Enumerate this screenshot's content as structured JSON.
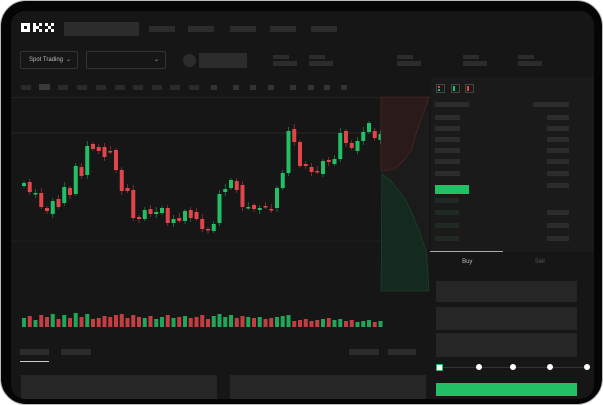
{
  "header": {
    "logo": "OKX"
  },
  "toolbar": {
    "market_select": "Spot Trading",
    "chevron": "⌄"
  },
  "trade": {
    "buy_tab": "Buy",
    "sell_tab": "Sell",
    "slider_percent": 0
  },
  "colors": {
    "up": "#22c065",
    "down": "#e0454a",
    "bg": "#161616",
    "skeleton": "#2c2c2c"
  },
  "icons": [
    "chevron-down-icon",
    "line-icon",
    "ruler-icon",
    "camera-icon",
    "settings-icon",
    "fullscreen-icon",
    "orderbook-both-icon",
    "orderbook-buy-icon",
    "orderbook-sell-icon"
  ],
  "chart_data": {
    "type": "candlestick",
    "title": "",
    "candles": [
      [
        115,
        118
      ],
      [
        119,
        109
      ],
      [
        107,
        108
      ],
      [
        108,
        94
      ],
      [
        93,
        90
      ],
      [
        87,
        100
      ],
      [
        102,
        94
      ],
      [
        98,
        114
      ],
      [
        113,
        106
      ],
      [
        107,
        135
      ],
      [
        134,
        125
      ],
      [
        126,
        155
      ],
      [
        157,
        152
      ],
      [
        154,
        150
      ],
      [
        154,
        144
      ],
      [
        150,
        149
      ],
      [
        151,
        131
      ],
      [
        131,
        110
      ],
      [
        113,
        110
      ],
      [
        111,
        83
      ],
      [
        84,
        82
      ],
      [
        82,
        91
      ],
      [
        92,
        87
      ],
      [
        87,
        89
      ],
      [
        88,
        93
      ],
      [
        93,
        78
      ],
      [
        78,
        82
      ],
      [
        83,
        80
      ],
      [
        80,
        90
      ],
      [
        91,
        83
      ],
      [
        89,
        82
      ],
      [
        82,
        72
      ],
      [
        72,
        71
      ],
      [
        70,
        77
      ],
      [
        78,
        107
      ],
      [
        109,
        112
      ],
      [
        113,
        121
      ],
      [
        120,
        111
      ],
      [
        116,
        94
      ],
      [
        93,
        94
      ],
      [
        96,
        92
      ],
      [
        91,
        93
      ],
      [
        95,
        94
      ],
      [
        92,
        91
      ],
      [
        93,
        113
      ],
      [
        113,
        128
      ],
      [
        128,
        170
      ],
      [
        172,
        159
      ],
      [
        159,
        135
      ],
      [
        137,
        135
      ],
      [
        134,
        129
      ],
      [
        130,
        129
      ],
      [
        127,
        140
      ],
      [
        141,
        139
      ],
      [
        137,
        142
      ],
      [
        142,
        168
      ],
      [
        170,
        158
      ],
      [
        158,
        153
      ],
      [
        150,
        160
      ],
      [
        160,
        169
      ],
      [
        169,
        178
      ],
      [
        170,
        163
      ],
      [
        161,
        167
      ]
    ],
    "volumes": [
      9,
      11,
      7,
      12,
      10,
      13,
      8,
      12,
      9,
      14,
      10,
      13,
      8,
      9,
      11,
      10,
      12,
      13,
      9,
      12,
      10,
      9,
      11,
      8,
      10,
      12,
      9,
      10,
      11,
      9,
      10,
      12,
      8,
      11,
      13,
      10,
      12,
      9,
      11,
      10,
      9,
      10,
      8,
      9,
      10,
      11,
      12,
      6,
      7,
      8,
      6,
      7,
      8,
      9,
      7,
      8,
      6,
      7,
      5,
      6,
      7,
      5,
      6
    ],
    "depth": {
      "asks": "top-left red area",
      "bids": "bottom-left green area"
    }
  }
}
